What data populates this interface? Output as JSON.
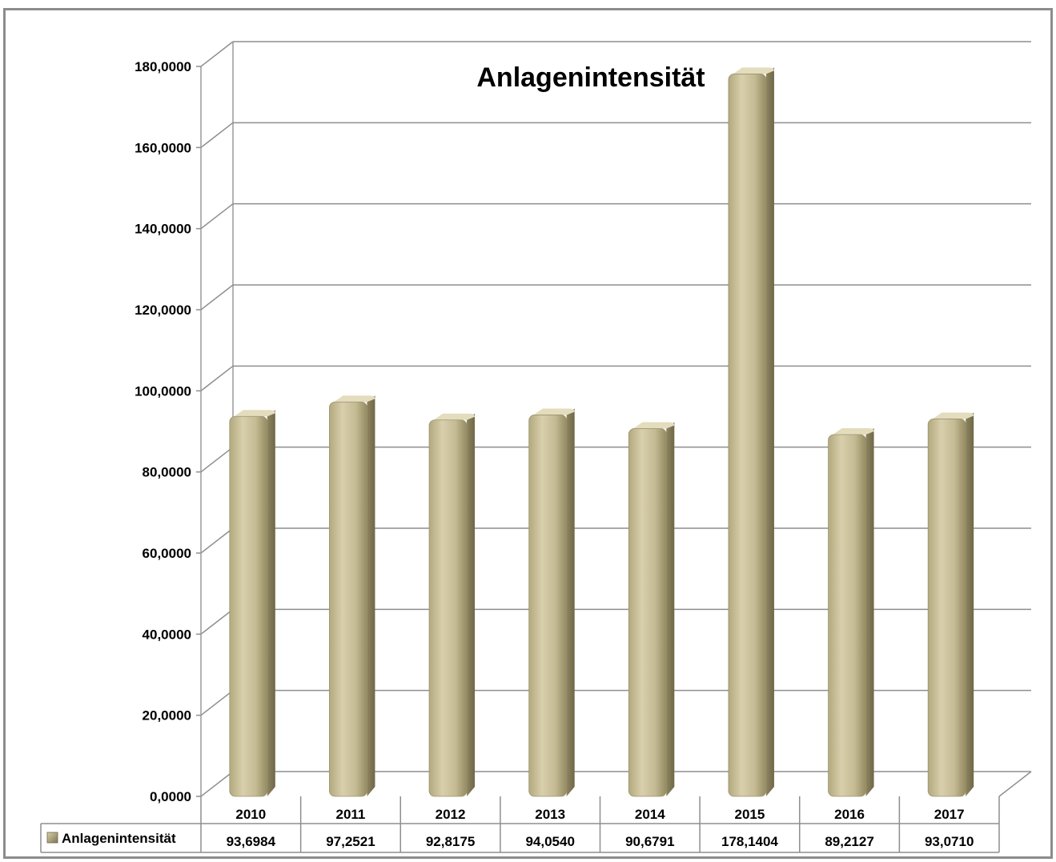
{
  "chart_data": {
    "type": "bar",
    "title": "Anlagenintensität",
    "xlabel": "",
    "ylabel": "",
    "ylim": [
      0,
      180
    ],
    "y_ticks": [
      "0,0000",
      "20,0000",
      "40,0000",
      "60,0000",
      "80,0000",
      "100,0000",
      "120,0000",
      "140,0000",
      "160,0000",
      "180,0000"
    ],
    "categories": [
      "2010",
      "2011",
      "2012",
      "2013",
      "2014",
      "2015",
      "2016",
      "2017"
    ],
    "series": [
      {
        "name": "Anlagenintensität",
        "values": [
          93.6984,
          97.2521,
          92.8175,
          94.054,
          90.6791,
          178.1404,
          89.2127,
          93.071
        ],
        "labels": [
          "93,6984",
          "97,2521",
          "92,8175",
          "94,0540",
          "90,6791",
          "178,1404",
          "89,2127",
          "93,0710"
        ],
        "color": "#c9c09a"
      }
    ],
    "grid": true,
    "legend": "data-table",
    "bar_style": "3d-cylinder"
  }
}
